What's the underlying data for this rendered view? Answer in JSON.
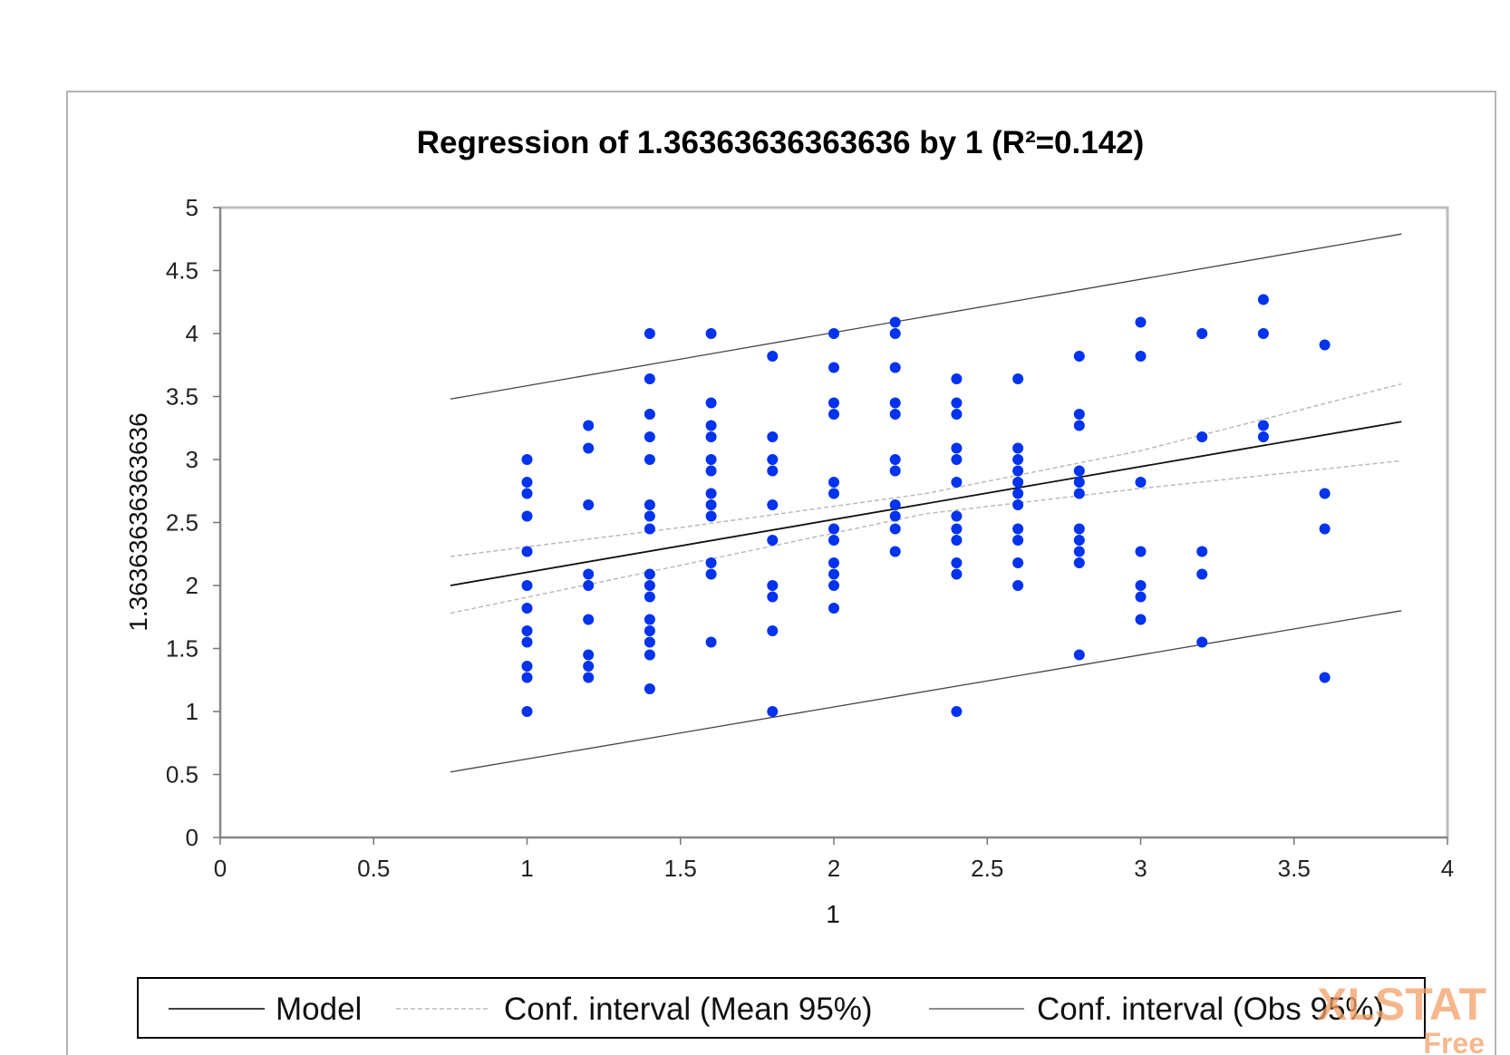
{
  "chart_data": {
    "type": "scatter",
    "title": "Regression of 1.36363636363636 by 1 (R²=0.142)",
    "xlabel": "1",
    "ylabel": "1.36363636363636",
    "xlim": [
      0,
      4
    ],
    "ylim": [
      0,
      5
    ],
    "x_ticks": [
      "0",
      "0.5",
      "1",
      "1.5",
      "2",
      "2.5",
      "3",
      "3.5",
      "4"
    ],
    "y_ticks": [
      "0",
      "0.5",
      "1",
      "1.5",
      "2",
      "2.5",
      "3",
      "3.5",
      "4",
      "4.5",
      "5"
    ],
    "grid": false,
    "legend": {
      "position": "bottom",
      "entries": [
        "Model",
        "Conf. interval (Mean 95%)",
        "Conf. interval (Obs 95%)"
      ]
    },
    "point_color": "#0033ee",
    "columns": [
      {
        "x": 1.0,
        "y": [
          3.0,
          2.82,
          2.73,
          2.55,
          2.27,
          2.0,
          1.82,
          1.64,
          1.55,
          1.36,
          1.27,
          1.0
        ]
      },
      {
        "x": 1.2,
        "y": [
          3.27,
          3.09,
          2.64,
          2.09,
          2.0,
          1.73,
          1.45,
          1.36,
          1.27
        ]
      },
      {
        "x": 1.4,
        "y": [
          4.0,
          3.64,
          3.36,
          3.18,
          3.0,
          2.64,
          2.55,
          2.45,
          2.09,
          2.0,
          1.91,
          1.73,
          1.64,
          1.55,
          1.45,
          1.18
        ]
      },
      {
        "x": 1.6,
        "y": [
          4.0,
          3.45,
          3.27,
          3.18,
          3.0,
          2.91,
          2.73,
          2.64,
          2.55,
          2.18,
          2.09,
          1.55
        ]
      },
      {
        "x": 1.8,
        "y": [
          3.82,
          3.18,
          3.0,
          2.91,
          2.64,
          2.36,
          2.0,
          1.91,
          1.64,
          1.0
        ]
      },
      {
        "x": 2.0,
        "y": [
          4.0,
          3.73,
          3.45,
          3.36,
          2.82,
          2.73,
          2.45,
          2.36,
          2.18,
          2.09,
          2.0,
          1.82
        ]
      },
      {
        "x": 2.2,
        "y": [
          4.09,
          4.0,
          3.73,
          3.45,
          3.36,
          3.0,
          2.91,
          2.64,
          2.55,
          2.45,
          2.27
        ]
      },
      {
        "x": 2.4,
        "y": [
          3.64,
          3.45,
          3.36,
          3.09,
          3.0,
          2.82,
          2.55,
          2.45,
          2.36,
          2.18,
          2.09,
          1.0
        ]
      },
      {
        "x": 2.6,
        "y": [
          3.64,
          3.09,
          3.0,
          2.91,
          2.82,
          2.73,
          2.64,
          2.45,
          2.36,
          2.18,
          2.0
        ]
      },
      {
        "x": 2.8,
        "y": [
          3.82,
          3.36,
          3.27,
          2.91,
          2.82,
          2.73,
          2.45,
          2.36,
          2.27,
          2.18,
          1.45
        ]
      },
      {
        "x": 3.0,
        "y": [
          4.09,
          3.82,
          2.82,
          2.27,
          2.0,
          1.91,
          1.73
        ]
      },
      {
        "x": 3.2,
        "y": [
          4.0,
          3.18,
          2.27,
          2.09,
          1.55
        ]
      },
      {
        "x": 3.4,
        "y": [
          4.27,
          4.0,
          3.27,
          3.18
        ]
      },
      {
        "x": 3.6,
        "y": [
          3.91,
          2.73,
          2.45,
          1.27
        ]
      }
    ],
    "model": {
      "x": [
        0.75,
        3.85
      ],
      "y": [
        2.0,
        3.3
      ]
    },
    "mean_ci": {
      "x": [
        0.75,
        1.5,
        2.3,
        3.0,
        3.85
      ],
      "upper": [
        2.23,
        2.46,
        2.73,
        3.07,
        3.6
      ],
      "lower": [
        1.78,
        2.16,
        2.57,
        2.77,
        2.99
      ]
    },
    "obs_ci": {
      "x": [
        0.75,
        3.85
      ],
      "upper": [
        3.48,
        4.79
      ],
      "lower": [
        0.52,
        1.8
      ]
    },
    "watermark": {
      "text": "XLSTAT",
      "sub": "Free"
    }
  }
}
